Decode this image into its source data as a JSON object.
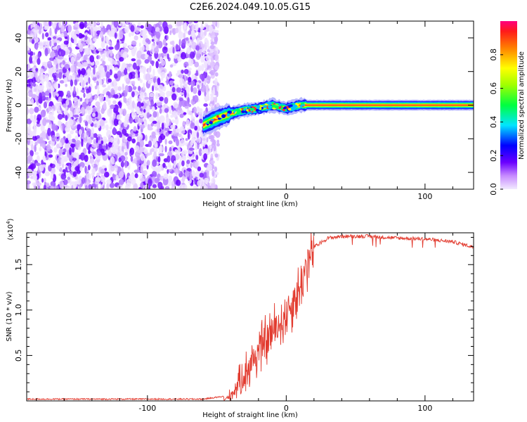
{
  "title": "C2E6.2024.049.10.05.G15",
  "chart_data": [
    {
      "type": "heatmap",
      "title": "",
      "xlabel": "Height of straight line (km)",
      "ylabel": "Frequency (Hz)",
      "xlim": [
        -187,
        135
      ],
      "ylim": [
        -50,
        50
      ],
      "xticks": [
        -100,
        0,
        100
      ],
      "yticks": [
        -40,
        -20,
        0,
        20,
        40
      ],
      "noise_region_x": [
        -187,
        -57
      ],
      "signal_track": {
        "x": [
          -60,
          -50,
          -40,
          -30,
          -20,
          -10,
          0,
          10,
          20,
          60,
          100,
          135
        ],
        "y": [
          -12,
          -8,
          -5,
          -3,
          -2,
          0,
          -2,
          0,
          0,
          0,
          0,
          0
        ]
      },
      "colorbar": {
        "label": "Normalized spectral amplitude",
        "range": [
          0.0,
          1.0
        ],
        "ticks": [
          0.0,
          0.2,
          0.4,
          0.6,
          0.8
        ]
      }
    },
    {
      "type": "line",
      "title": "",
      "xlabel": "Height of straight line (km)",
      "ylabel": "SNR (10 * v/v)",
      "multiplier_label": "(x10",
      "multiplier_exp": "4",
      "xlim": [
        -187,
        135
      ],
      "ylim": [
        0,
        1.85
      ],
      "xticks": [
        -100,
        0,
        100
      ],
      "yticks": [
        0.5,
        1.0,
        1.5
      ],
      "ytick_labels": [
        "0.5",
        "1.0",
        "1.5"
      ],
      "color": "#e23a2e",
      "series": [
        {
          "x": [
            -187,
            -150,
            -100,
            -60,
            -45,
            -38,
            -30,
            -20,
            -10,
            0,
            10,
            15,
            20,
            30,
            40,
            60,
            80,
            100,
            120,
            135
          ],
          "values": [
            0.02,
            0.02,
            0.02,
            0.02,
            0.05,
            0.15,
            0.35,
            0.6,
            0.8,
            1.0,
            1.3,
            1.55,
            1.7,
            1.8,
            1.82,
            1.82,
            1.8,
            1.79,
            1.76,
            1.7
          ]
        }
      ]
    }
  ]
}
